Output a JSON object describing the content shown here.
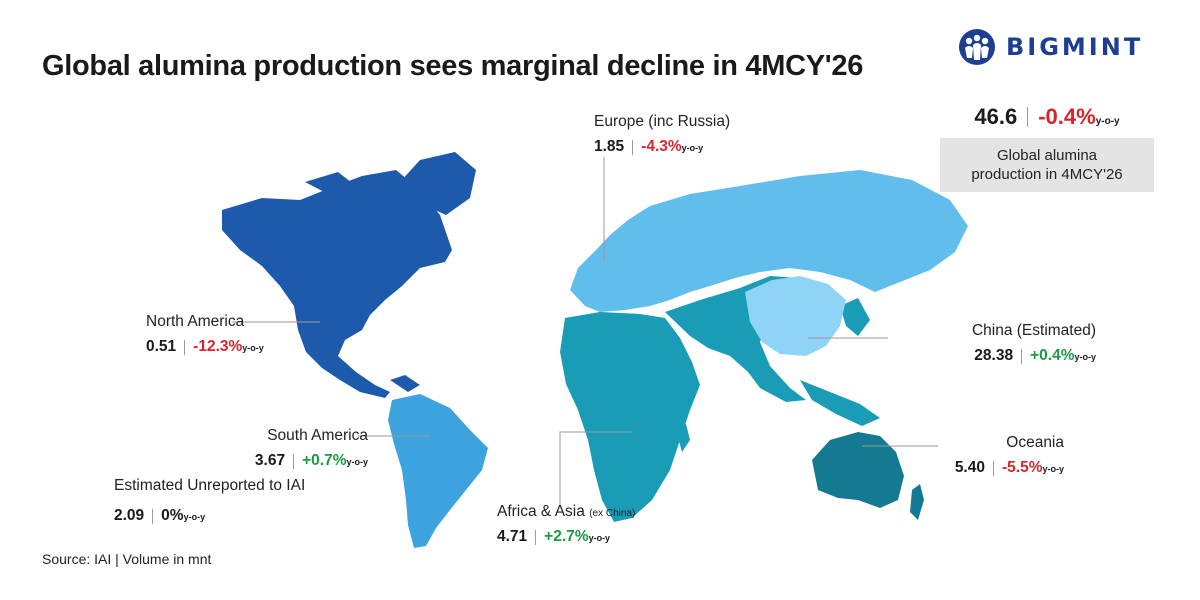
{
  "title": "Global alumina production sees marginal decline in 4MCY'26",
  "brand": {
    "name": "BIGMINT",
    "color": "#1e3f8f"
  },
  "global": {
    "value": "46.6",
    "change": "-0.4%",
    "yoy": "y-o-y",
    "caption_line1": "Global alumina",
    "caption_line2": "production in 4MCY'26"
  },
  "regions": {
    "north_america": {
      "name": "North America",
      "value": "0.51",
      "change": "-12.3%",
      "yoy": "y-o-y",
      "color": "#1d5aab"
    },
    "europe": {
      "name": "Europe (inc Russia)",
      "value": "1.85",
      "change": "-4.3%",
      "yoy": "y-o-y",
      "color": "#61bdec"
    },
    "china": {
      "name": "China (Estimated)",
      "value": "28.38",
      "change": "+0.4%",
      "yoy": "y-o-y",
      "color": "#8fd4f7"
    },
    "south_america": {
      "name": "South America",
      "value": "3.67",
      "change": "+0.7%",
      "yoy": "y-o-y",
      "color": "#3ca3de"
    },
    "unreported": {
      "name": "Estimated Unreported to IAI",
      "value": "2.09",
      "change": "0%",
      "yoy": "y-o-y"
    },
    "africa_asia": {
      "name": "Africa & Asia",
      "name_note": "(ex China)",
      "value": "4.71",
      "change": "+2.7%",
      "yoy": "y-o-y",
      "color": "#1a9cb7"
    },
    "oceania": {
      "name": "Oceania",
      "value": "5.40",
      "change": "-5.5%",
      "yoy": "y-o-y",
      "color": "#137a92"
    }
  },
  "source": "Source: IAI | Volume in mnt"
}
